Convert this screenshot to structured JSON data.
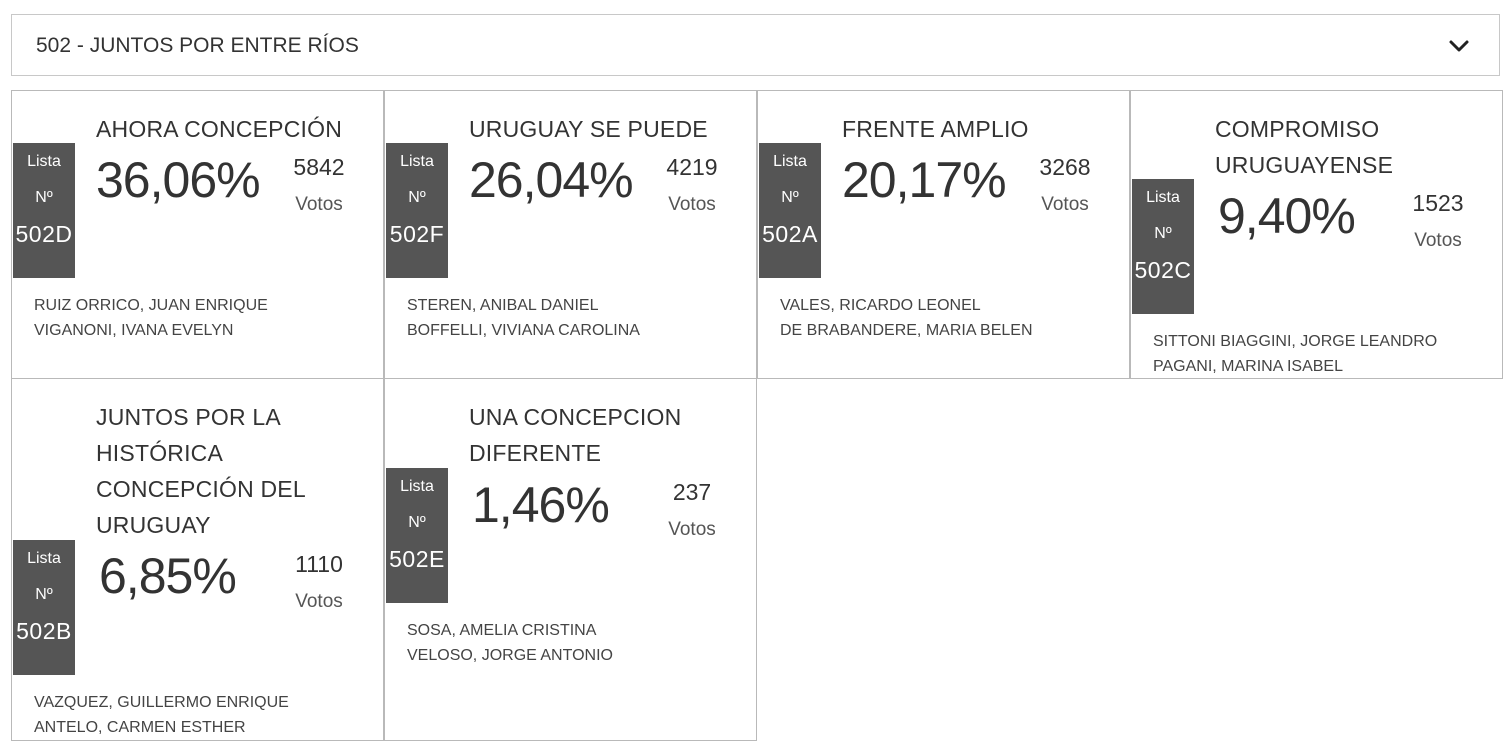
{
  "header": {
    "title": "502 - JUNTOS POR ENTRE RÍOS"
  },
  "cards": [
    {
      "name_lines": [
        "AHORA CONCEPCIÓN"
      ],
      "badge": [
        "Lista",
        "Nº",
        "502D"
      ],
      "percent": "36,06%",
      "votes": "5842",
      "votes_label": "Votos",
      "candidates": [
        "RUIZ ORRICO, JUAN ENRIQUE",
        "VIGANONI, IVANA EVELYN"
      ]
    },
    {
      "name_lines": [
        "URUGUAY SE PUEDE"
      ],
      "badge": [
        "Lista",
        "Nº",
        "502F"
      ],
      "percent": "26,04%",
      "votes": "4219",
      "votes_label": "Votos",
      "candidates": [
        "STEREN, ANIBAL DANIEL",
        "BOFFELLI, VIVIANA CAROLINA"
      ]
    },
    {
      "name_lines": [
        "FRENTE AMPLIO"
      ],
      "badge": [
        "Lista",
        "Nº",
        "502A"
      ],
      "percent": "20,17%",
      "votes": "3268",
      "votes_label": "Votos",
      "candidates": [
        "VALES, RICARDO LEONEL",
        "DE BRABANDERE, MARIA BELEN"
      ]
    },
    {
      "name_lines": [
        "COMPROMISO",
        "URUGUAYENSE"
      ],
      "badge": [
        "Lista",
        "Nº",
        "502C"
      ],
      "percent": "9,40%",
      "votes": "1523",
      "votes_label": "Votos",
      "candidates": [
        "SITTONI BIAGGINI, JORGE LEANDRO",
        "PAGANI, MARINA ISABEL"
      ]
    },
    {
      "name_lines": [
        "JUNTOS POR LA",
        "HISTÓRICA",
        "CONCEPCIÓN DEL",
        "URUGUAY"
      ],
      "badge": [
        "Lista",
        "Nº",
        "502B"
      ],
      "percent": "6,85%",
      "votes": "1110",
      "votes_label": "Votos",
      "candidates": [
        "VAZQUEZ, GUILLERMO ENRIQUE",
        "ANTELO, CARMEN ESTHER"
      ]
    },
    {
      "name_lines": [
        "UNA CONCEPCION",
        "DIFERENTE"
      ],
      "badge": [
        "Lista",
        "Nº",
        "502E"
      ],
      "percent": "1,46%",
      "votes": "237",
      "votes_label": "Votos",
      "candidates": [
        "SOSA, AMELIA CRISTINA",
        "VELOSO, JORGE ANTONIO"
      ]
    }
  ],
  "colors": {
    "badge_bg": "#555555",
    "border": "#b9b9b9",
    "text": "#333333"
  },
  "icons": {
    "expand": "chevron-down-icon"
  }
}
